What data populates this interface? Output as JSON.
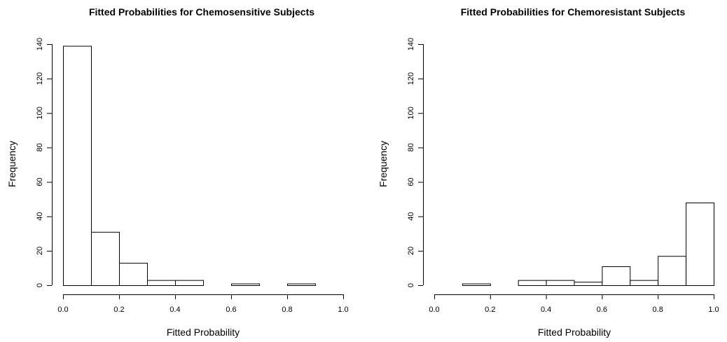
{
  "chart_data": [
    {
      "type": "bar",
      "title": "Fitted Probabilities for Chemosensitive Subjects",
      "xlabel": "Fitted Probability",
      "ylabel": "Frequency",
      "xlim": [
        0,
        1
      ],
      "ylim": [
        0,
        140
      ],
      "xticks": [
        "0.0",
        "0.2",
        "0.4",
        "0.6",
        "0.8",
        "1.0"
      ],
      "yticks": [
        "0",
        "20",
        "40",
        "60",
        "80",
        "100",
        "120",
        "140"
      ],
      "bins": [
        {
          "x0": 0.0,
          "x1": 0.1,
          "count": 139
        },
        {
          "x0": 0.1,
          "x1": 0.2,
          "count": 31
        },
        {
          "x0": 0.2,
          "x1": 0.3,
          "count": 13
        },
        {
          "x0": 0.3,
          "x1": 0.4,
          "count": 3
        },
        {
          "x0": 0.4,
          "x1": 0.5,
          "count": 3
        },
        {
          "x0": 0.5,
          "x1": 0.6,
          "count": 0
        },
        {
          "x0": 0.6,
          "x1": 0.7,
          "count": 1
        },
        {
          "x0": 0.7,
          "x1": 0.8,
          "count": 0
        },
        {
          "x0": 0.8,
          "x1": 0.9,
          "count": 1
        }
      ],
      "grid": false
    },
    {
      "type": "bar",
      "title": "Fitted Probabilities for Chemoresistant Subjects",
      "xlabel": "Fitted Probability",
      "ylabel": "Frequency",
      "xlim": [
        0,
        1
      ],
      "ylim": [
        0,
        140
      ],
      "xticks": [
        "0.0",
        "0.2",
        "0.4",
        "0.6",
        "0.8",
        "1.0"
      ],
      "yticks": [
        "0",
        "20",
        "40",
        "60",
        "80",
        "100",
        "120",
        "140"
      ],
      "bins": [
        {
          "x0": 0.1,
          "x1": 0.2,
          "count": 1
        },
        {
          "x0": 0.2,
          "x1": 0.3,
          "count": 0
        },
        {
          "x0": 0.3,
          "x1": 0.4,
          "count": 3
        },
        {
          "x0": 0.4,
          "x1": 0.5,
          "count": 3
        },
        {
          "x0": 0.5,
          "x1": 0.6,
          "count": 2
        },
        {
          "x0": 0.6,
          "x1": 0.7,
          "count": 11
        },
        {
          "x0": 0.7,
          "x1": 0.8,
          "count": 3
        },
        {
          "x0": 0.8,
          "x1": 0.9,
          "count": 17
        },
        {
          "x0": 0.9,
          "x1": 1.0,
          "count": 48
        }
      ],
      "grid": false
    }
  ]
}
